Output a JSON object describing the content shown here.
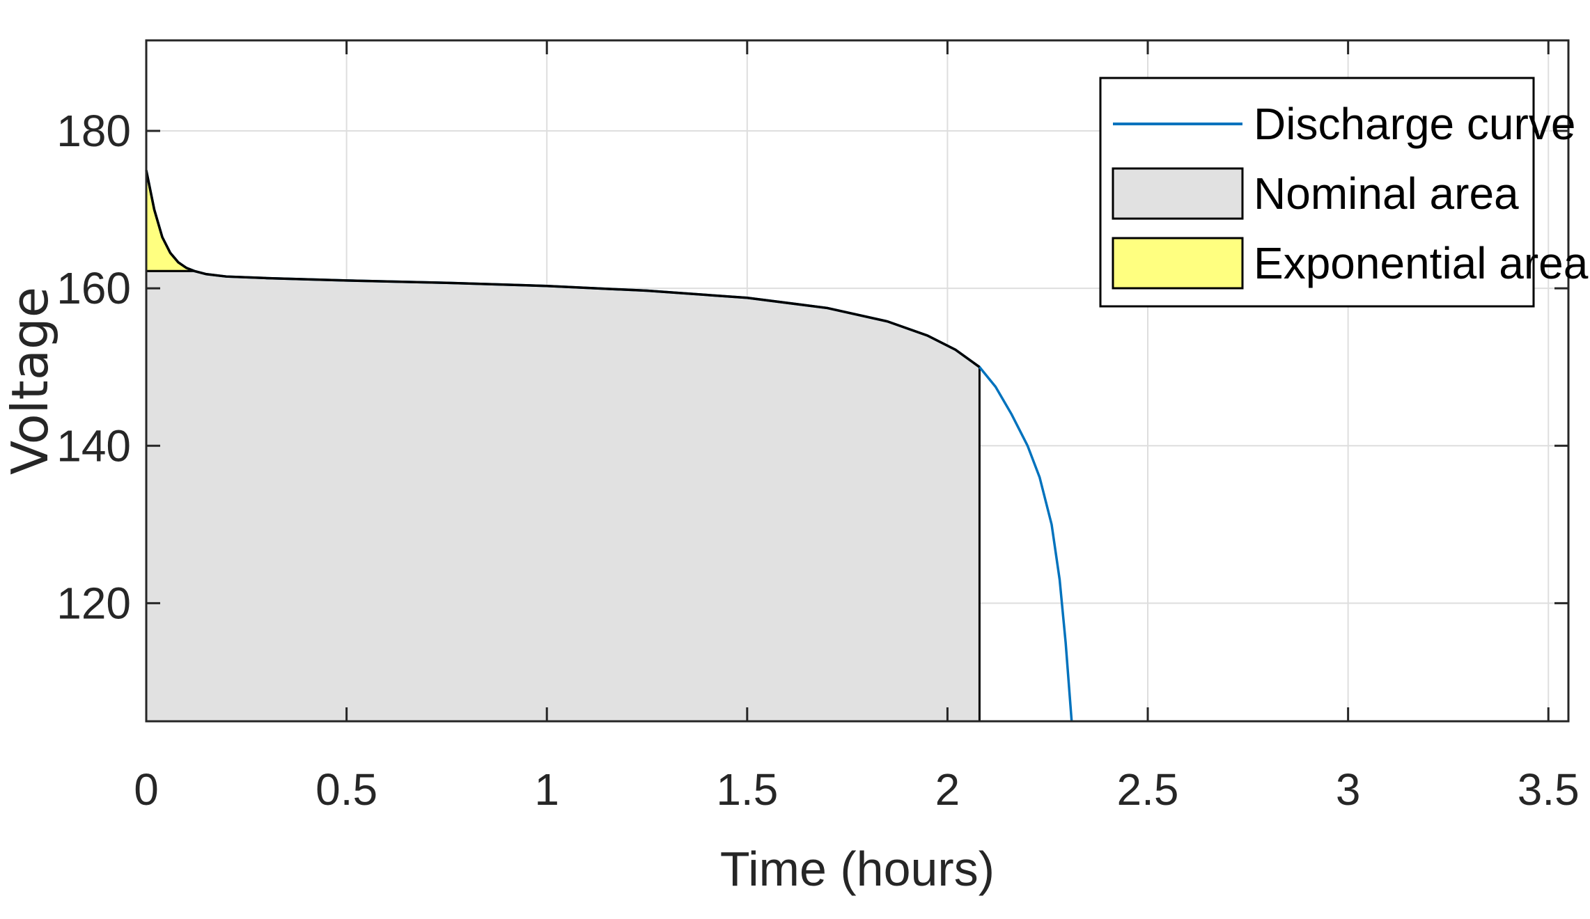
{
  "chart_data": {
    "type": "area",
    "title": "",
    "xlabel": "Time (hours)",
    "ylabel": "Voltage",
    "xlim": [
      0,
      3.55
    ],
    "ylim": [
      105,
      191.5
    ],
    "xticks": [
      0,
      0.5,
      1,
      1.5,
      2,
      2.5,
      3,
      3.5
    ],
    "xtick_labels": [
      "0",
      "0.5",
      "1",
      "1.5",
      "2",
      "2.5",
      "3",
      "3.5"
    ],
    "yticks": [
      120,
      140,
      160,
      180
    ],
    "ytick_labels": [
      "120",
      "140",
      "160",
      "180"
    ],
    "grid": true,
    "legend_position": "top-right",
    "series": [
      {
        "name": "Discharge curve",
        "kind": "line",
        "color": "#0072BD",
        "x": [
          0,
          0.02,
          0.04,
          0.06,
          0.08,
          0.1,
          0.12,
          0.15,
          0.2,
          0.3,
          0.5,
          0.75,
          1.0,
          1.25,
          1.5,
          1.7,
          1.85,
          1.95,
          2.02,
          2.08,
          2.12,
          2.16,
          2.2,
          2.23,
          2.26,
          2.28,
          2.295,
          2.31
        ],
        "y": [
          175,
          170,
          166.5,
          164.5,
          163.3,
          162.6,
          162.2,
          161.8,
          161.5,
          161.3,
          161.0,
          160.7,
          160.3,
          159.7,
          158.8,
          157.5,
          155.8,
          154.0,
          152.2,
          150.0,
          147.5,
          144.0,
          140.0,
          136.0,
          130.0,
          123.0,
          115.0,
          105.0
        ]
      },
      {
        "name": "Nominal area",
        "kind": "area",
        "color": "#E1E1E1",
        "x": [
          0,
          0.08,
          0.12,
          0.15,
          0.2,
          0.3,
          0.5,
          0.75,
          1.0,
          1.25,
          1.5,
          1.7,
          1.85,
          1.95,
          2.02,
          2.08
        ],
        "y": [
          162.2,
          162.2,
          162.2,
          161.8,
          161.5,
          161.3,
          161.0,
          160.7,
          160.3,
          159.7,
          158.8,
          157.5,
          155.8,
          154.0,
          152.2,
          150.0
        ]
      },
      {
        "name": "Exponential area",
        "kind": "area",
        "color": "#FFFF80",
        "x": [
          0,
          0.02,
          0.04,
          0.06,
          0.08,
          0.1,
          0.12
        ],
        "y": [
          175,
          170,
          166.5,
          164.5,
          163.3,
          162.6,
          162.2
        ],
        "baseline": 162.2
      }
    ]
  }
}
